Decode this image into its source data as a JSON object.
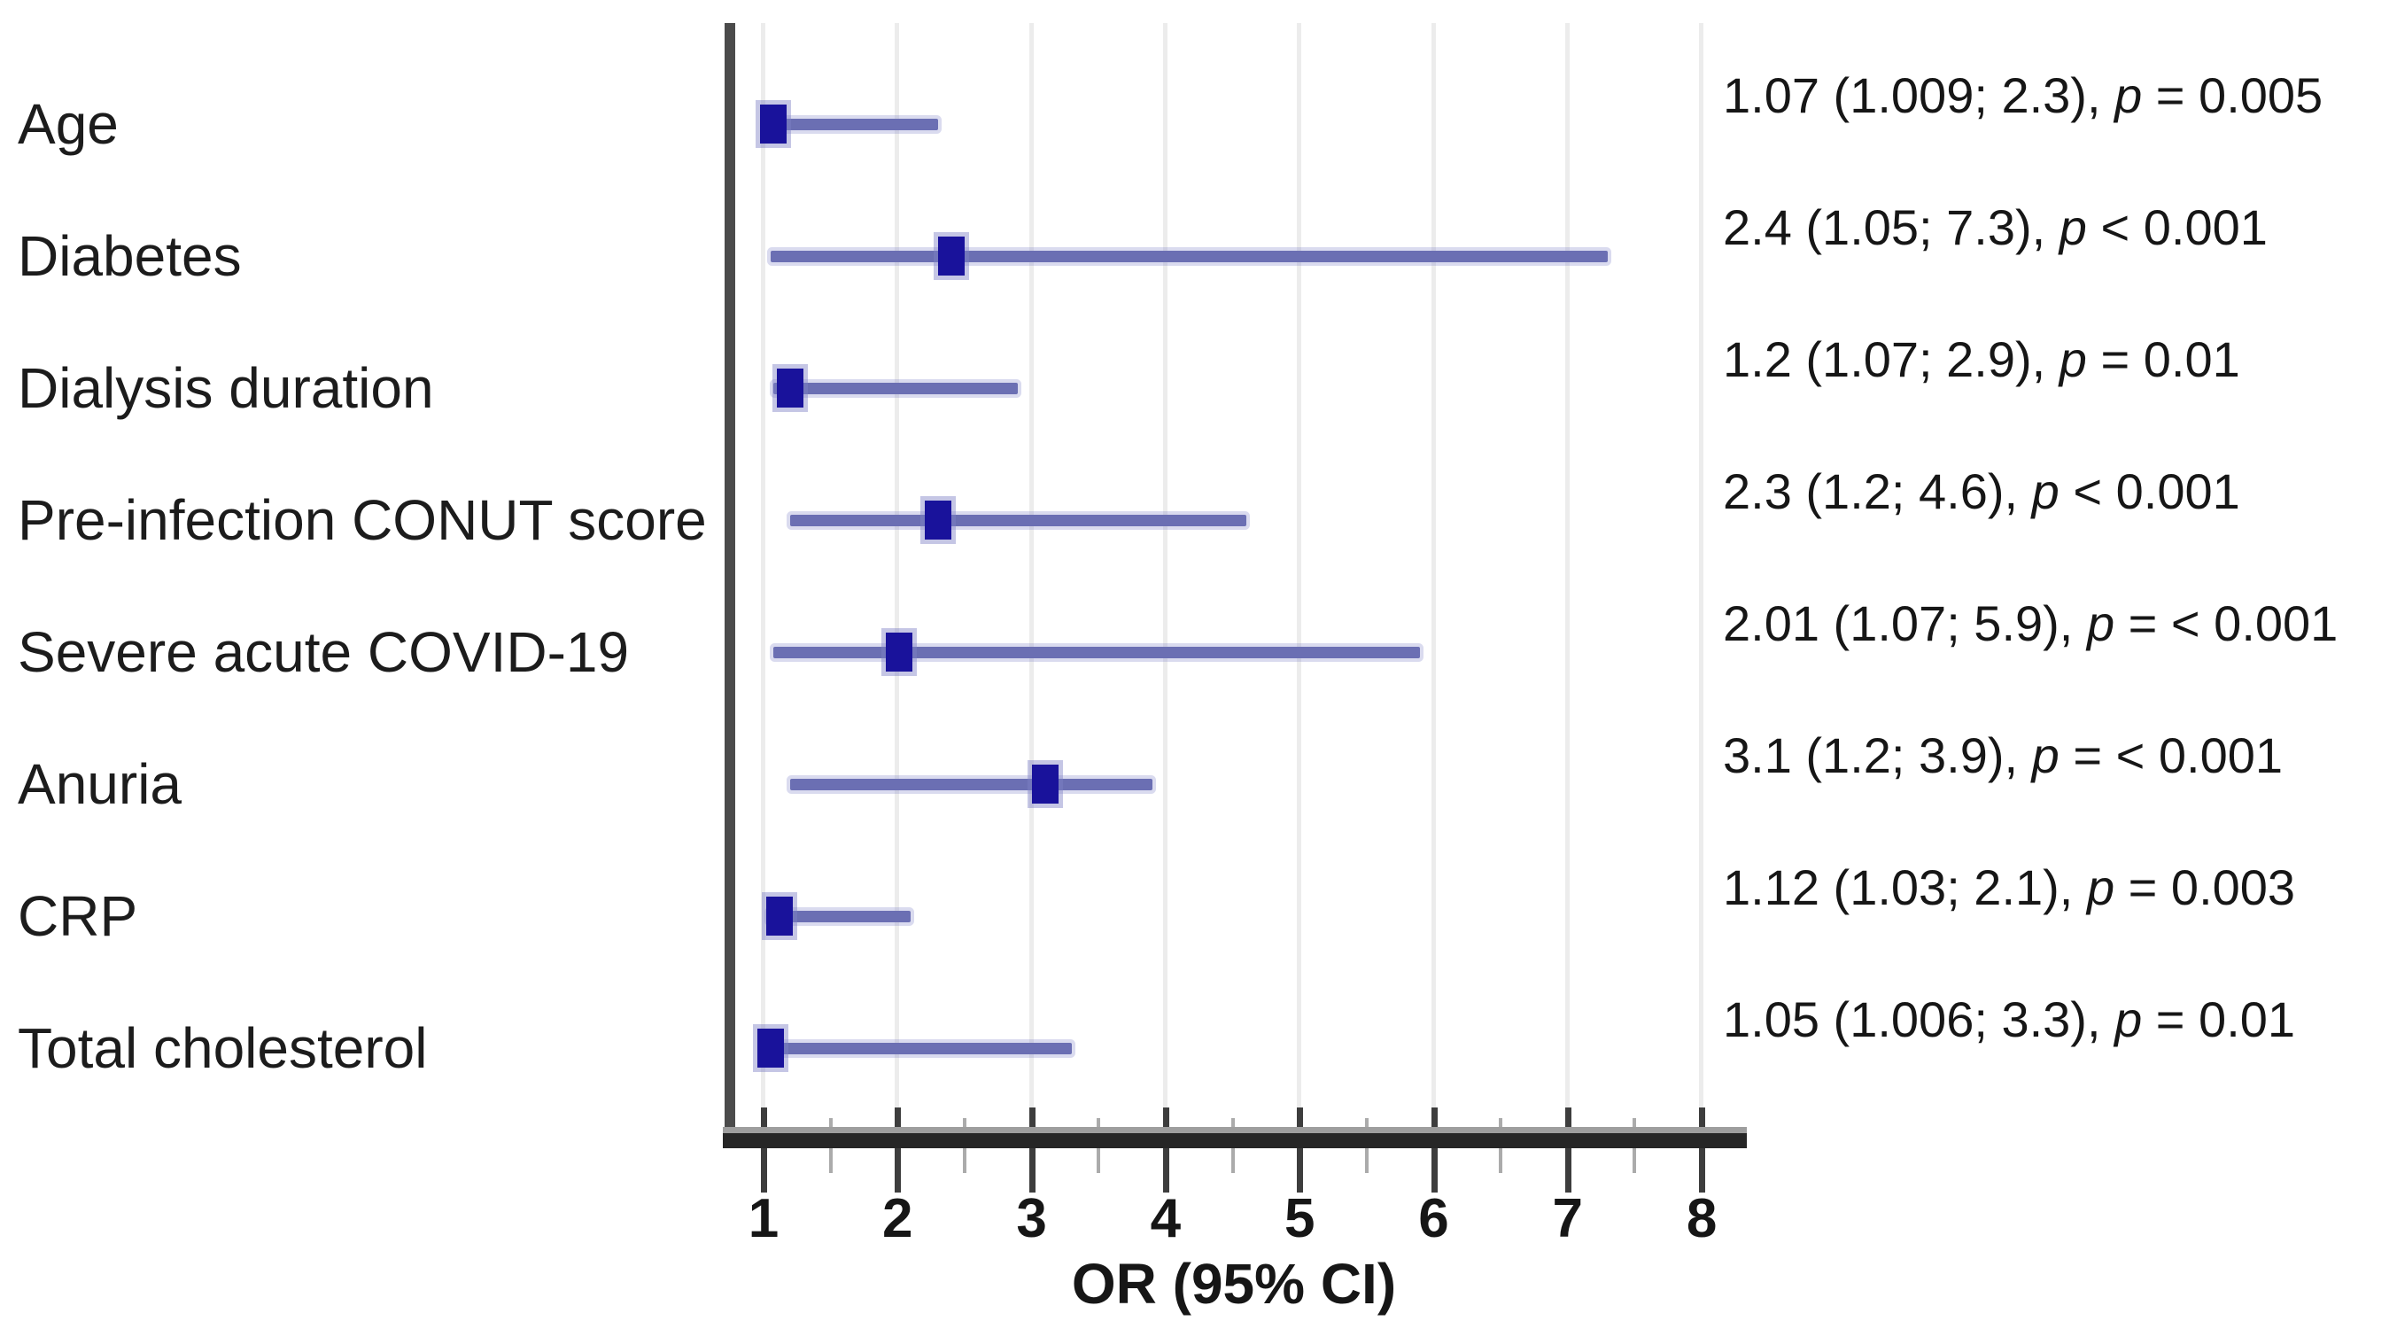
{
  "figure": {
    "background": "#ffffff",
    "colors": {
      "marker": "#19129b",
      "ci_line": "#6b6fb3",
      "gridline": "#ececec",
      "axis": "#262626",
      "text": "#161616"
    }
  },
  "chart_data": {
    "type": "scatter",
    "variant": "forest-plot",
    "title": "",
    "xlabel": "OR (95% CI)",
    "ylabel": "",
    "xlim": [
      0.75,
      8.3
    ],
    "grid": "vertical-major",
    "x_ticks": [
      1,
      2,
      3,
      4,
      5,
      6,
      7,
      8
    ],
    "x_tick_labels": [
      "1",
      "2",
      "3",
      "4",
      "5",
      "6",
      "7",
      "8"
    ],
    "x_minor_ticks": [
      1.5,
      2.5,
      3.5,
      4.5,
      5.5,
      6.5,
      7.5
    ],
    "categories": [
      "Age",
      "Diabetes",
      "Dialysis duration",
      "Pre-infection CONUT score",
      "Severe acute COVID-19",
      "Anuria",
      "CRP",
      "Total cholesterol"
    ],
    "rows": [
      {
        "label": "Age",
        "or": 1.07,
        "ci_low": 1.009,
        "ci_high": 2.3,
        "estimate_text": "1.07 (1.009; 2.3),",
        "p_prefix": "p",
        "p_text": "= 0.005"
      },
      {
        "label": "Diabetes",
        "or": 2.4,
        "ci_low": 1.05,
        "ci_high": 7.3,
        "estimate_text": "2.4 (1.05; 7.3),",
        "p_prefix": "p",
        "p_text": "< 0.001"
      },
      {
        "label": "Dialysis duration",
        "or": 1.2,
        "ci_low": 1.07,
        "ci_high": 2.9,
        "estimate_text": "1.2 (1.07; 2.9),",
        "p_prefix": "p",
        "p_text": "= 0.01"
      },
      {
        "label": "Pre-infection CONUT score",
        "or": 2.3,
        "ci_low": 1.2,
        "ci_high": 4.6,
        "estimate_text": "2.3 (1.2; 4.6),",
        "p_prefix": "p",
        "p_text": "< 0.001"
      },
      {
        "label": "Severe acute COVID-19",
        "or": 2.01,
        "ci_low": 1.07,
        "ci_high": 5.9,
        "estimate_text": "2.01 (1.07; 5.9),",
        "p_prefix": "p",
        "p_text": "= < 0.001"
      },
      {
        "label": "Anuria",
        "or": 3.1,
        "ci_low": 1.2,
        "ci_high": 3.9,
        "estimate_text": "3.1 (1.2; 3.9),",
        "p_prefix": "p",
        "p_text": "= < 0.001"
      },
      {
        "label": "CRP",
        "or": 1.12,
        "ci_low": 1.03,
        "ci_high": 2.1,
        "estimate_text": "1.12 (1.03; 2.1),",
        "p_prefix": "p",
        "p_text": "= 0.003"
      },
      {
        "label": "Total cholesterol",
        "or": 1.05,
        "ci_low": 1.006,
        "ci_high": 3.3,
        "estimate_text": "1.05 (1.006; 3.3),",
        "p_prefix": "p",
        "p_text": "= 0.01"
      }
    ]
  }
}
